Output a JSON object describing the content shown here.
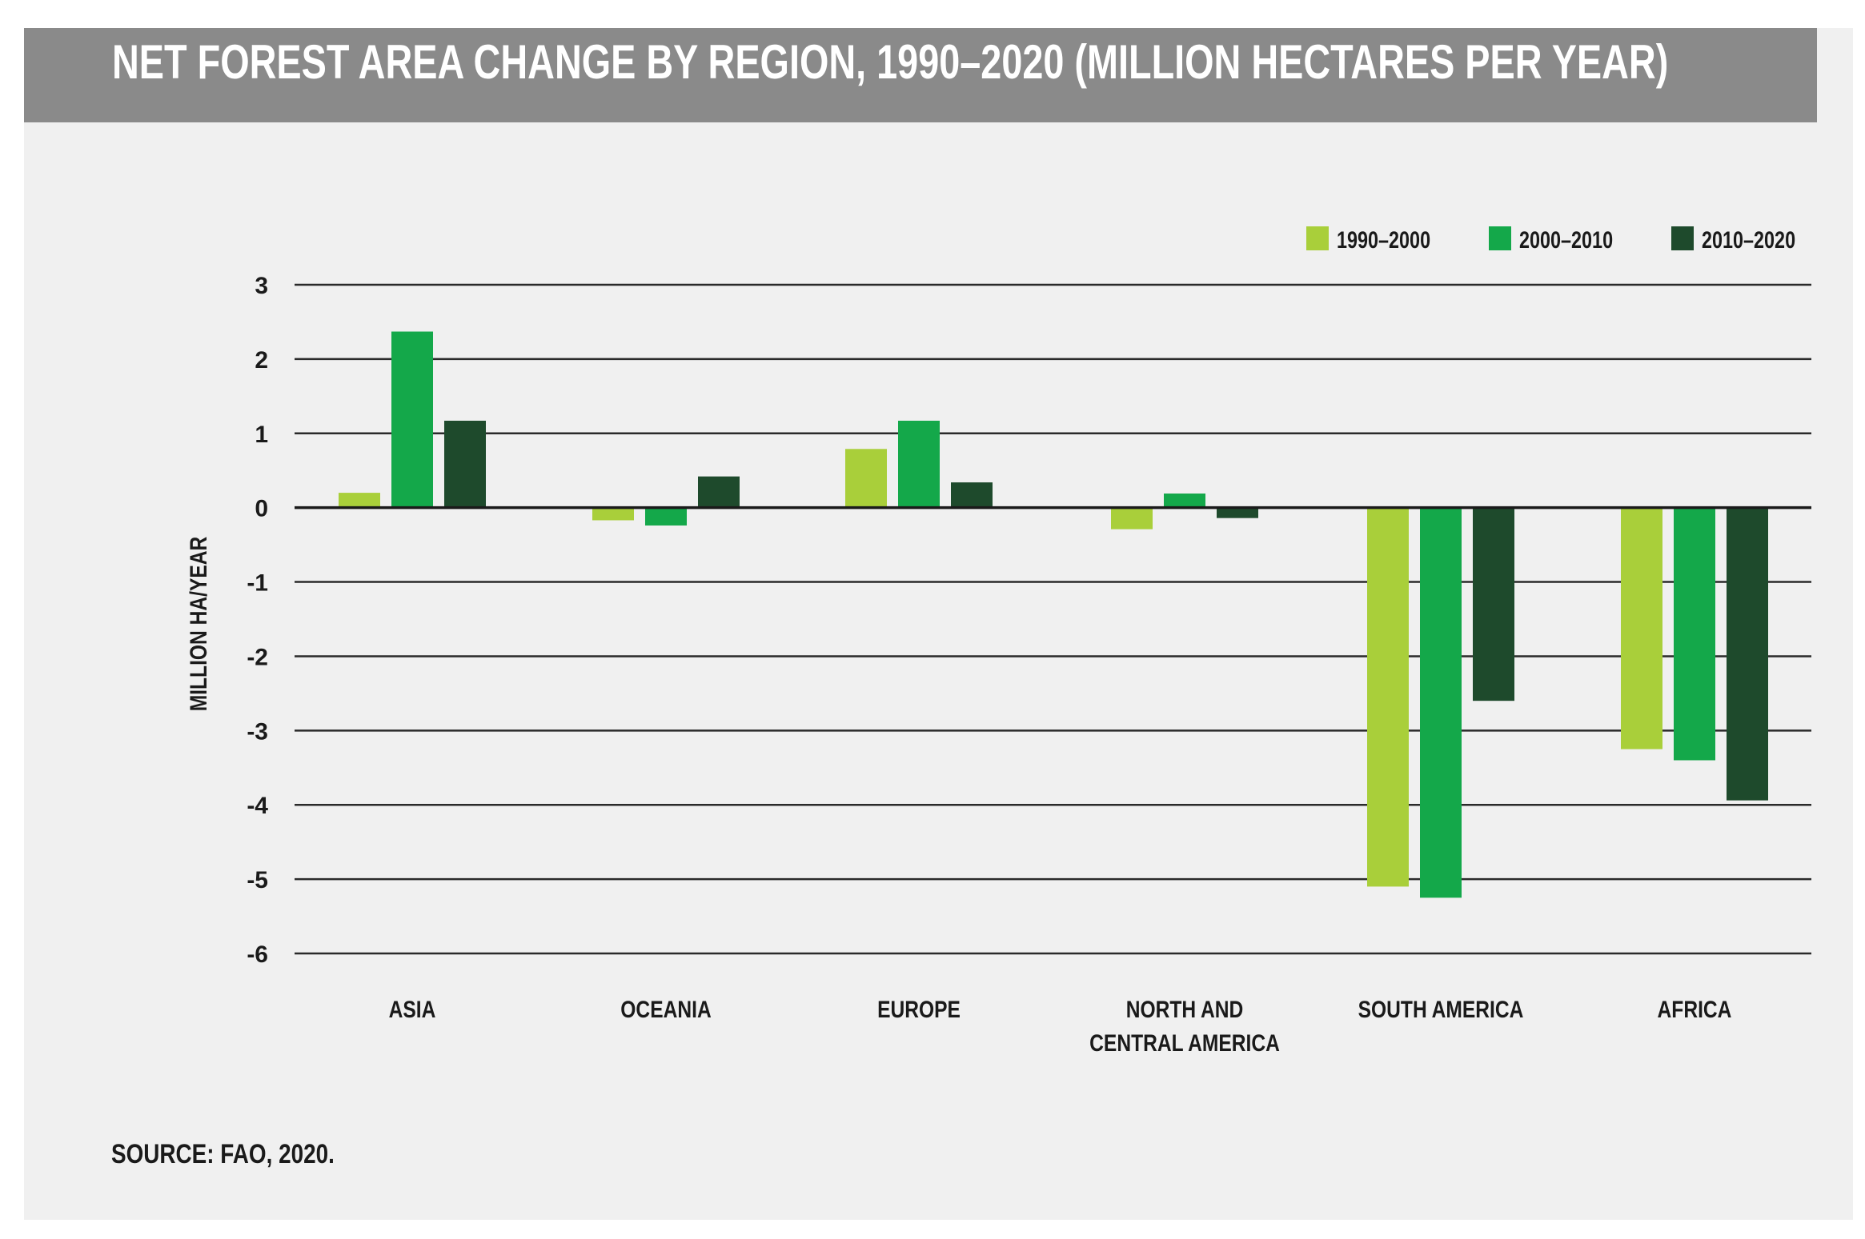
{
  "chart_data": {
    "type": "bar",
    "title": "NET FOREST AREA CHANGE BY REGION, 1990–2020 (MILLION HECTARES PER YEAR)",
    "xlabel": "",
    "ylabel": "MILLION HA/YEAR",
    "ylim": [
      -6,
      3
    ],
    "yticks": [
      "3",
      "2",
      "1",
      "0",
      "-1",
      "-2",
      "-3",
      "-4",
      "-5",
      "-6"
    ],
    "ytick_values": [
      3,
      2,
      1,
      0,
      -1,
      -2,
      -3,
      -4,
      -5,
      -6
    ],
    "grid": true,
    "legend_position": "top-right",
    "categories": [
      [
        "ASIA"
      ],
      [
        "OCEANIA"
      ],
      [
        "EUROPE"
      ],
      [
        "NORTH AND",
        "CENTRAL AMERICA"
      ],
      [
        "SOUTH AMERICA"
      ],
      [
        "AFRICA"
      ]
    ],
    "series": [
      {
        "name": "1990–2000",
        "color": "#a9cf3a",
        "values": [
          0.2,
          -0.17,
          0.79,
          -0.29,
          -5.1,
          -3.25
        ]
      },
      {
        "name": "2000–2010",
        "color": "#14a84a",
        "values": [
          2.37,
          -0.24,
          1.17,
          0.19,
          -5.25,
          -3.4
        ]
      },
      {
        "name": "2010–2020",
        "color": "#1e4a2c",
        "values": [
          1.17,
          0.42,
          0.34,
          -0.14,
          -2.6,
          -3.94
        ]
      }
    ],
    "source": "SOURCE: FAO, 2020."
  }
}
